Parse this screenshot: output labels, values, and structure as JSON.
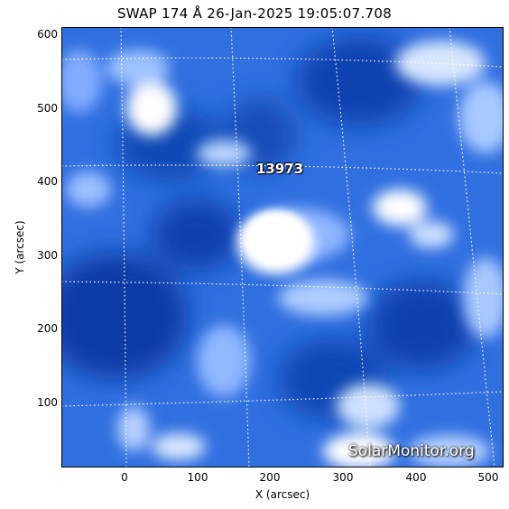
{
  "title": "SWAP 174 Å 26-Jan-2025 19:05:07.708",
  "x_axis": {
    "label": "X (arcsec)",
    "ticks": [
      "0",
      "100",
      "200",
      "300",
      "400",
      "500"
    ]
  },
  "y_axis": {
    "label": "Y (arcsec)",
    "ticks": [
      "600",
      "500",
      "400",
      "300",
      "200",
      "100"
    ]
  },
  "region_label": "13973",
  "watermark": "SolarMonitor.org",
  "colors": {
    "background": "#2f6fe0",
    "dark": "#0b3ea8",
    "bright": "#ffffff",
    "grid": "#ffffff"
  }
}
